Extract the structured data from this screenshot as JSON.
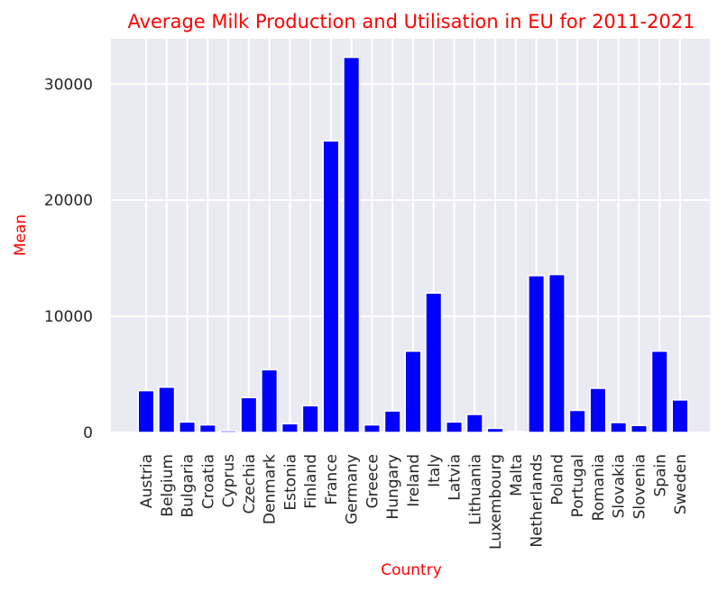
{
  "chart_data": {
    "type": "bar",
    "title": "Average Milk Production and Utilisation in EU for 2011-2021",
    "xlabel": "Country",
    "ylabel": "Mean",
    "categories": [
      "Austria",
      "Belgium",
      "Bulgaria",
      "Croatia",
      "Cyprus",
      "Czechia",
      "Denmark",
      "Estonia",
      "Finland",
      "France",
      "Germany",
      "Greece",
      "Hungary",
      "Ireland",
      "Italy",
      "Latvia",
      "Lithuania",
      "Luxembourg",
      "Malta",
      "Netherlands",
      "Poland",
      "Portugal",
      "Romania",
      "Slovakia",
      "Slovenia",
      "Spain",
      "Sweden"
    ],
    "values": [
      3600,
      3900,
      900,
      650,
      150,
      3000,
      5400,
      750,
      2300,
      25100,
      32300,
      650,
      1850,
      7000,
      12000,
      900,
      1550,
      350,
      100,
      13500,
      13600,
      1900,
      3800,
      850,
      600,
      7000,
      2800
    ],
    "yticks": [
      0,
      10000,
      20000,
      30000
    ],
    "ylim": [
      0,
      33900
    ],
    "grid": true,
    "colors": {
      "bar": "#0000ff",
      "bar_edge": "#ffffff",
      "title": "#ff0000",
      "axis_label": "#ff0000",
      "plot_bg": "#eaeaf2",
      "grid": "#ffffff",
      "tick_text": "#262626"
    }
  }
}
